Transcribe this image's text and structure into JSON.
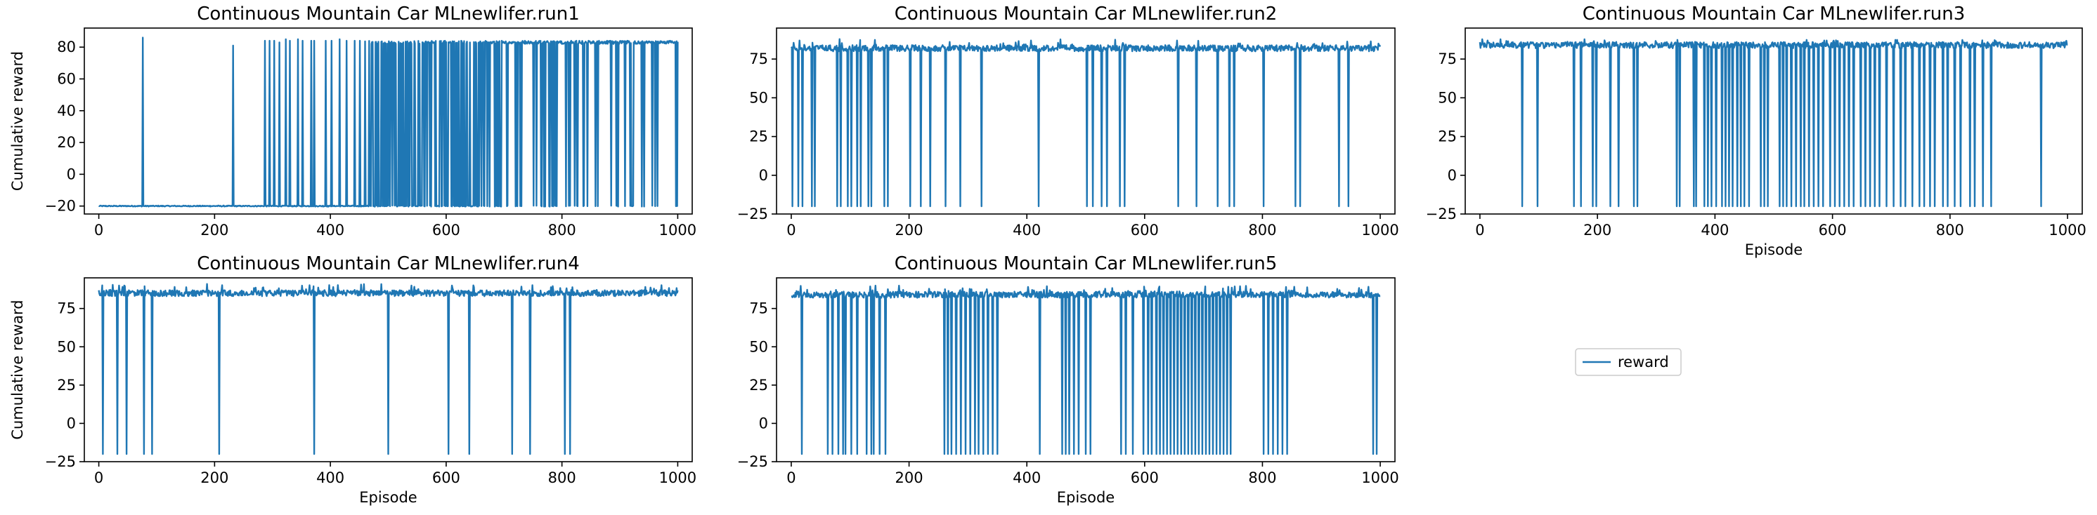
{
  "chart_data": [
    {
      "type": "line",
      "title": "Continuous Mountain Car MLnewlifer.run1",
      "xlabel": "",
      "ylabel": "Cumulative reward",
      "xlim": [
        -25,
        1025
      ],
      "ylim": [
        -25,
        92
      ],
      "xticks": [
        0,
        200,
        400,
        600,
        800,
        1000
      ],
      "yticks": [
        -20,
        0,
        20,
        40,
        60,
        80
      ],
      "baseline": -20,
      "high": 84,
      "drops": [],
      "spikes": [
        [
          76,
          86
        ],
        [
          232,
          81
        ],
        [
          287,
          84
        ],
        [
          295,
          84
        ],
        [
          303,
          84
        ],
        [
          312,
          83
        ],
        [
          323,
          85
        ],
        [
          330,
          84
        ],
        [
          344,
          85
        ],
        [
          352,
          84
        ],
        [
          367,
          84
        ],
        [
          372,
          84
        ],
        [
          392,
          84
        ],
        [
          402,
          84
        ],
        [
          416,
          85
        ],
        [
          428,
          84
        ],
        [
          442,
          84
        ],
        [
          451,
          84
        ]
      ],
      "dense": [
        [
          460,
          670,
          0.5
        ],
        [
          670,
          870,
          0.82
        ],
        [
          870,
          1000,
          0.92
        ]
      ],
      "series": [
        {
          "values": []
        }
      ]
    },
    {
      "type": "line",
      "title": "Continuous Mountain Car MLnewlifer.run2",
      "xlabel": "",
      "ylabel": "",
      "xlim": [
        -25,
        1025
      ],
      "ylim": [
        -25,
        95
      ],
      "xticks": [
        0,
        200,
        400,
        600,
        800,
        1000
      ],
      "yticks": [
        -25,
        0,
        25,
        50,
        75
      ],
      "baseline": 84,
      "high": 88,
      "drops": [
        [
          2,
          -20
        ],
        [
          12,
          -20
        ],
        [
          19,
          -20
        ],
        [
          35,
          -20
        ],
        [
          40,
          -20
        ],
        [
          78,
          -20
        ],
        [
          84,
          -20
        ],
        [
          96,
          -20
        ],
        [
          102,
          -20
        ],
        [
          112,
          -20
        ],
        [
          118,
          -20
        ],
        [
          131,
          -20
        ],
        [
          136,
          -20
        ],
        [
          158,
          -20
        ],
        [
          164,
          -20
        ],
        [
          202,
          -20
        ],
        [
          220,
          -20
        ],
        [
          236,
          -20
        ],
        [
          262,
          -20
        ],
        [
          287,
          -20
        ],
        [
          323,
          -20
        ],
        [
          420,
          -20
        ],
        [
          502,
          -20
        ],
        [
          512,
          -20
        ],
        [
          527,
          -20
        ],
        [
          536,
          -20
        ],
        [
          558,
          -20
        ],
        [
          566,
          -20
        ],
        [
          657,
          -20
        ],
        [
          688,
          -20
        ],
        [
          724,
          -20
        ],
        [
          744,
          -20
        ],
        [
          752,
          -20
        ],
        [
          802,
          -20
        ],
        [
          856,
          -20
        ],
        [
          864,
          -20
        ],
        [
          930,
          -20
        ],
        [
          946,
          -20
        ]
      ],
      "spikes": [],
      "dense": [],
      "series": [
        {
          "values": []
        }
      ]
    },
    {
      "type": "line",
      "title": "Continuous Mountain Car MLnewlifer.run3",
      "xlabel": "Episode",
      "ylabel": "",
      "xlim": [
        -25,
        1025
      ],
      "ylim": [
        -25,
        95
      ],
      "xticks": [
        0,
        200,
        400,
        600,
        800,
        1000
      ],
      "yticks": [
        -25,
        0,
        25,
        50,
        75
      ],
      "baseline": 86,
      "high": 88,
      "drops": [
        [
          72,
          -20
        ],
        [
          98,
          -20
        ],
        [
          160,
          -20
        ],
        [
          172,
          -20
        ],
        [
          192,
          -20
        ],
        [
          198,
          -20
        ],
        [
          222,
          -20
        ],
        [
          236,
          -20
        ],
        [
          262,
          -20
        ],
        [
          268,
          -20
        ],
        [
          335,
          -20
        ],
        [
          340,
          -20
        ],
        [
          364,
          -20
        ],
        [
          368,
          -20
        ],
        [
          382,
          -20
        ],
        [
          388,
          -20
        ],
        [
          394,
          -20
        ],
        [
          402,
          -20
        ],
        [
          412,
          -20
        ],
        [
          418,
          -20
        ],
        [
          424,
          -20
        ],
        [
          430,
          -20
        ],
        [
          438,
          -20
        ],
        [
          444,
          -20
        ],
        [
          450,
          -20
        ],
        [
          458,
          -20
        ],
        [
          478,
          -20
        ],
        [
          484,
          -20
        ],
        [
          490,
          -20
        ],
        [
          510,
          -20
        ],
        [
          516,
          -20
        ],
        [
          522,
          -20
        ],
        [
          530,
          -20
        ],
        [
          538,
          -20
        ],
        [
          546,
          -20
        ],
        [
          552,
          -20
        ],
        [
          560,
          -20
        ],
        [
          568,
          -20
        ],
        [
          576,
          -20
        ],
        [
          584,
          -20
        ],
        [
          596,
          -20
        ],
        [
          604,
          -20
        ],
        [
          612,
          -20
        ],
        [
          620,
          -20
        ],
        [
          628,
          -20
        ],
        [
          636,
          -20
        ],
        [
          648,
          -20
        ],
        [
          656,
          -20
        ],
        [
          664,
          -20
        ],
        [
          672,
          -20
        ],
        [
          680,
          -20
        ],
        [
          692,
          -20
        ],
        [
          704,
          -20
        ],
        [
          716,
          -20
        ],
        [
          724,
          -20
        ],
        [
          736,
          -20
        ],
        [
          748,
          -20
        ],
        [
          756,
          -20
        ],
        [
          766,
          -20
        ],
        [
          774,
          -20
        ],
        [
          788,
          -20
        ],
        [
          796,
          -20
        ],
        [
          808,
          -20
        ],
        [
          818,
          -20
        ],
        [
          834,
          -20
        ],
        [
          842,
          -20
        ],
        [
          856,
          -20
        ],
        [
          870,
          -20
        ],
        [
          955,
          -20
        ]
      ],
      "spikes": [],
      "dense": [],
      "series": [
        {
          "values": []
        }
      ]
    },
    {
      "type": "line",
      "title": "Continuous Mountain Car MLnewlifer.run4",
      "xlabel": "Episode",
      "ylabel": "Cumulative reward",
      "xlim": [
        -25,
        1025
      ],
      "ylim": [
        -25,
        95
      ],
      "xticks": [
        0,
        200,
        400,
        600,
        800,
        1000
      ],
      "yticks": [
        -25,
        0,
        25,
        50,
        75
      ],
      "baseline": 87,
      "high": 91,
      "drops": [
        [
          7,
          -20
        ],
        [
          32,
          -20
        ],
        [
          48,
          -20
        ],
        [
          78,
          -20
        ],
        [
          92,
          -20
        ],
        [
          208,
          -20
        ],
        [
          372,
          -20
        ],
        [
          500,
          -20
        ],
        [
          604,
          -20
        ],
        [
          640,
          -20
        ],
        [
          714,
          -20
        ],
        [
          745,
          -20
        ],
        [
          805,
          -20
        ],
        [
          814,
          -20
        ]
      ],
      "spikes": [],
      "dense": [],
      "series": [
        {
          "values": []
        }
      ]
    },
    {
      "type": "line",
      "title": "Continuous Mountain Car MLnewlifer.run5",
      "xlabel": "Episode",
      "ylabel": "",
      "xlim": [
        -25,
        1025
      ],
      "ylim": [
        -25,
        95
      ],
      "xticks": [
        0,
        200,
        400,
        600,
        800,
        1000
      ],
      "yticks": [
        -25,
        0,
        25,
        50,
        75
      ],
      "baseline": 86,
      "high": 90,
      "drops": [
        [
          18,
          -20
        ],
        [
          62,
          -20
        ],
        [
          70,
          -20
        ],
        [
          80,
          -20
        ],
        [
          88,
          -20
        ],
        [
          92,
          -20
        ],
        [
          102,
          -20
        ],
        [
          112,
          -20
        ],
        [
          128,
          -20
        ],
        [
          136,
          -20
        ],
        [
          140,
          -20
        ],
        [
          150,
          -20
        ],
        [
          160,
          -20
        ],
        [
          260,
          -20
        ],
        [
          266,
          -20
        ],
        [
          272,
          -20
        ],
        [
          280,
          -20
        ],
        [
          288,
          -20
        ],
        [
          296,
          -20
        ],
        [
          304,
          -20
        ],
        [
          312,
          -20
        ],
        [
          318,
          -20
        ],
        [
          326,
          -20
        ],
        [
          334,
          -20
        ],
        [
          342,
          -20
        ],
        [
          350,
          -20
        ],
        [
          422,
          -20
        ],
        [
          460,
          -20
        ],
        [
          466,
          -20
        ],
        [
          472,
          -20
        ],
        [
          480,
          -20
        ],
        [
          488,
          -20
        ],
        [
          500,
          -20
        ],
        [
          508,
          -20
        ],
        [
          560,
          -20
        ],
        [
          568,
          -20
        ],
        [
          580,
          -20
        ],
        [
          598,
          -20
        ],
        [
          606,
          -20
        ],
        [
          612,
          -20
        ],
        [
          620,
          -20
        ],
        [
          626,
          -20
        ],
        [
          632,
          -20
        ],
        [
          638,
          -20
        ],
        [
          644,
          -20
        ],
        [
          650,
          -20
        ],
        [
          656,
          -20
        ],
        [
          662,
          -20
        ],
        [
          668,
          -20
        ],
        [
          674,
          -20
        ],
        [
          680,
          -20
        ],
        [
          686,
          -20
        ],
        [
          692,
          -20
        ],
        [
          698,
          -20
        ],
        [
          704,
          -20
        ],
        [
          710,
          -20
        ],
        [
          716,
          -20
        ],
        [
          722,
          -20
        ],
        [
          728,
          -20
        ],
        [
          734,
          -20
        ],
        [
          740,
          -20
        ],
        [
          746,
          -20
        ],
        [
          802,
          -20
        ],
        [
          810,
          -20
        ],
        [
          818,
          -20
        ],
        [
          826,
          -20
        ],
        [
          834,
          -20
        ],
        [
          842,
          -20
        ],
        [
          988,
          -20
        ],
        [
          994,
          -20
        ]
      ],
      "spikes": [],
      "dense": [],
      "series": [
        {
          "values": []
        }
      ]
    }
  ],
  "legend": {
    "label": "reward"
  },
  "colors": {
    "series": "#1f77b4"
  }
}
